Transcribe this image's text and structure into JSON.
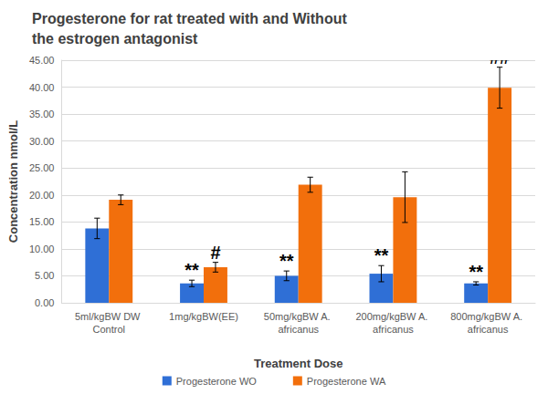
{
  "chart_data": {
    "type": "bar",
    "title": "Progesterone for rat treated with and Without the estrogen antagonist",
    "x_label": "Treatment Dose",
    "y_label": "Concentration nmol/L",
    "categories": [
      "5ml/kgBW DW Control",
      "1mg/kgBW(EE)",
      "50mg/kgBW A. africanus",
      "200mg/kgBW A. africanus",
      "800mg/kgBW A. africanus"
    ],
    "series": [
      {
        "name": "Progesterone WO",
        "color": "#2f6fd6",
        "values": [
          13.8,
          3.6,
          5.0,
          5.4,
          3.6
        ],
        "errors": [
          1.9,
          0.6,
          0.9,
          1.5,
          0.3
        ],
        "annotations": [
          null,
          "**",
          "**",
          "**",
          "**"
        ]
      },
      {
        "name": "Progesterone WA",
        "color": "#f26f0c",
        "values": [
          19.1,
          6.6,
          21.9,
          19.6,
          39.9
        ],
        "errors": [
          0.9,
          0.9,
          1.4,
          4.7,
          3.8
        ],
        "annotations": [
          null,
          "#",
          null,
          null,
          "##"
        ]
      }
    ],
    "ylim": [
      0,
      45
    ],
    "yticks": [
      {
        "value": 0,
        "label": "0.00"
      },
      {
        "value": 5,
        "label": "5.00"
      },
      {
        "value": 10,
        "label": "10.00"
      },
      {
        "value": 15,
        "label": "15.00"
      },
      {
        "value": 20,
        "label": "20.00"
      },
      {
        "value": 25,
        "label": "25.00"
      },
      {
        "value": 30,
        "label": "30.00"
      },
      {
        "value": 35,
        "label": "35.00"
      },
      {
        "value": 40,
        "label": "40.00"
      },
      {
        "value": 45,
        "label": "45.00"
      }
    ],
    "grid": true,
    "legend": "bottom"
  }
}
